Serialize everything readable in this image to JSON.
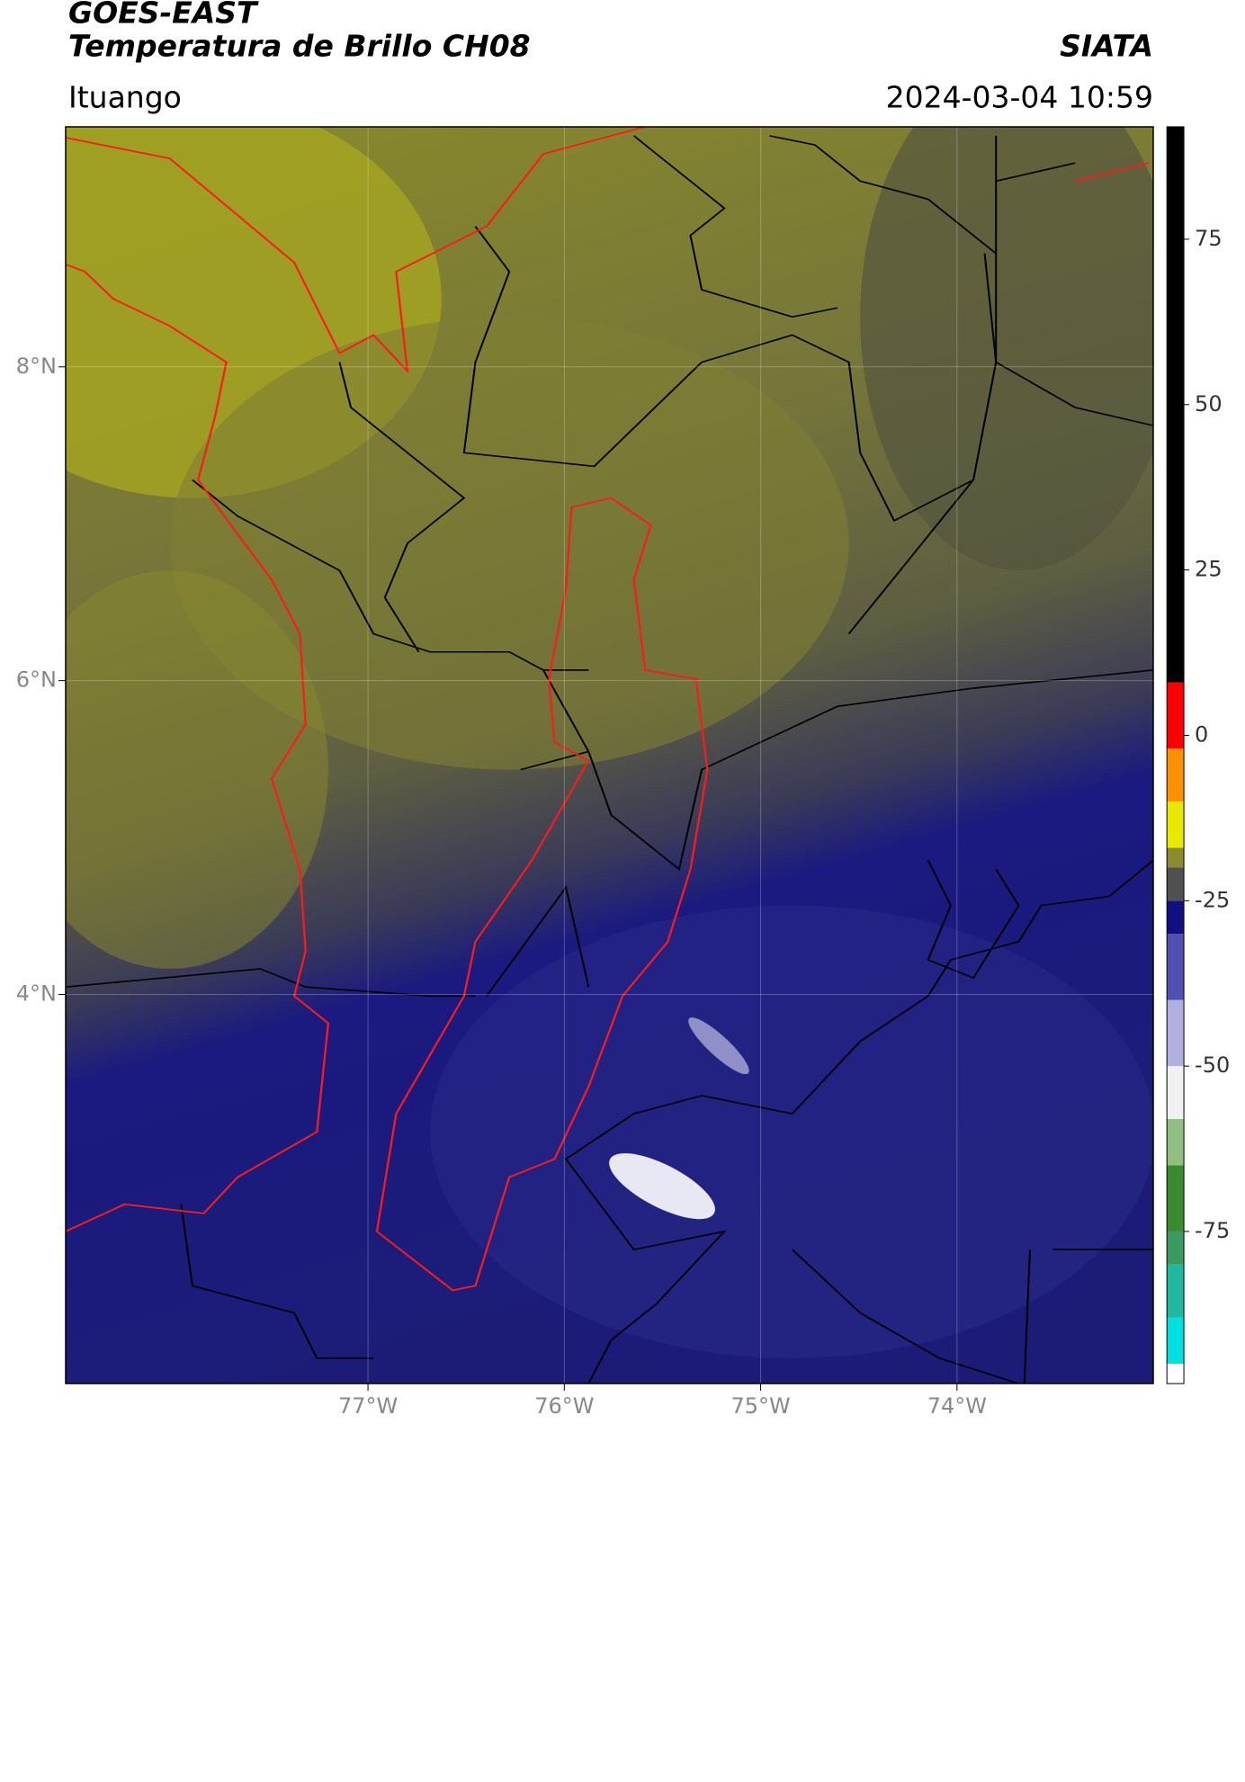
{
  "header": {
    "title": "GOES-EAST",
    "subtitle": "Temperatura de Brillo CH08",
    "brand": "SIATA",
    "location": "Ituango",
    "timestamp": "2024-03-04 10:59"
  },
  "map": {
    "xlim": [
      -78.54,
      -73.0
    ],
    "ylim": [
      1.52,
      9.53
    ],
    "xticks": [
      {
        "value": -77,
        "label": "77°W"
      },
      {
        "value": -76,
        "label": "76°W"
      },
      {
        "value": -75,
        "label": "75°W"
      },
      {
        "value": -74,
        "label": "74°W"
      }
    ],
    "yticks": [
      {
        "value": 8,
        "label": "8°N"
      },
      {
        "value": 6,
        "label": "6°N"
      },
      {
        "value": 4,
        "label": "4°N"
      }
    ],
    "grid": true
  },
  "colorbar": {
    "lim": [
      -98,
      92
    ],
    "ticks": [
      75,
      50,
      25,
      0,
      -25,
      -50,
      -75
    ],
    "bounds": [
      -98,
      -95,
      -88,
      -80,
      -75,
      -65,
      -58,
      -50,
      -40,
      -30,
      -25,
      -20,
      -17,
      -10,
      -2,
      8,
      92
    ],
    "colors": [
      "#ffffff",
      "#00e0e0",
      "#20b8a0",
      "#3a9a60",
      "#3a8a30",
      "#90c080",
      "#f0f0f0",
      "#b0b0e0",
      "#5050b0",
      "#101080",
      "#505050",
      "#8a8a30",
      "#e8e800",
      "#ff9000",
      "#ff0000",
      "#000000"
    ]
  }
}
